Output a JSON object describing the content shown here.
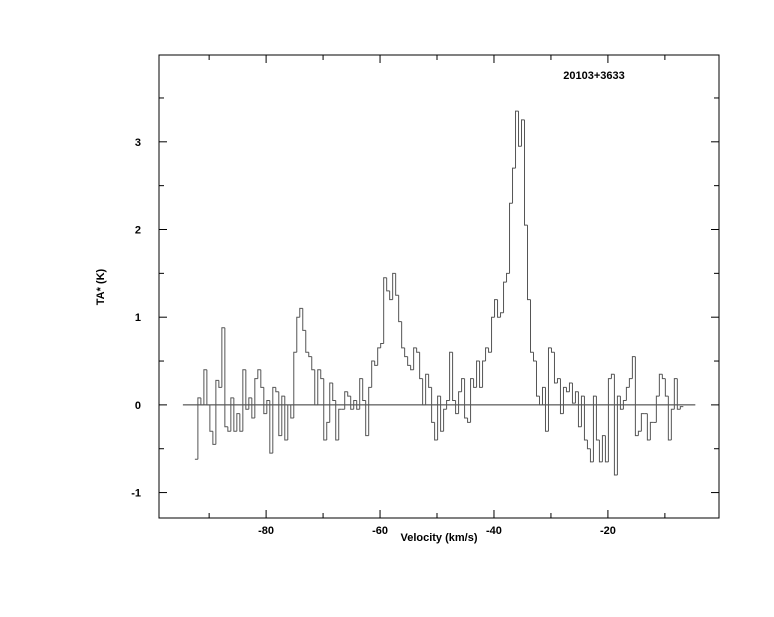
{
  "chart_data": {
    "type": "line",
    "style": "histogram-step",
    "title": "20103+3633",
    "xlabel": "Velocity (km/s)",
    "ylabel": "TA* (K)",
    "xlim": [
      -98.8,
      -0.5
    ],
    "ylim": [
      -1.29,
      3.99
    ],
    "xticks": [
      -80,
      -60,
      -40,
      -20
    ],
    "yticks": [
      -1,
      0,
      1,
      2,
      3
    ],
    "baseline": 0,
    "grid": false,
    "velocity_start": -92.5,
    "channel_width": 0.526,
    "values": [
      -0.62,
      0.08,
      0.0,
      0.4,
      0.0,
      -0.3,
      -0.45,
      0.28,
      0.2,
      0.88,
      -0.25,
      -0.3,
      0.08,
      -0.3,
      -0.1,
      -0.3,
      0.4,
      -0.05,
      0.08,
      -0.15,
      0.3,
      0.4,
      0.2,
      -0.1,
      0.05,
      -0.55,
      0.2,
      0.15,
      -0.35,
      0.1,
      -0.4,
      0.0,
      -0.15,
      0.6,
      1.0,
      1.1,
      0.85,
      0.6,
      0.55,
      0.4,
      0.0,
      0.4,
      0.3,
      -0.4,
      -0.2,
      0.25,
      0.05,
      -0.4,
      -0.05,
      -0.05,
      0.15,
      0.1,
      -0.05,
      0.05,
      -0.05,
      0.3,
      0.05,
      -0.35,
      0.2,
      0.5,
      0.45,
      0.65,
      0.7,
      1.45,
      1.3,
      1.2,
      1.5,
      1.25,
      0.95,
      0.65,
      0.55,
      0.45,
      0.4,
      0.65,
      0.6,
      0.3,
      0.0,
      0.35,
      0.2,
      -0.2,
      -0.4,
      0.1,
      -0.3,
      -0.05,
      0.05,
      0.6,
      0.05,
      -0.1,
      0.15,
      0.3,
      -0.15,
      -0.2,
      0.3,
      0.2,
      0.5,
      0.2,
      0.5,
      0.65,
      0.6,
      1.0,
      1.2,
      1.0,
      1.05,
      1.4,
      1.5,
      2.3,
      2.7,
      3.35,
      2.95,
      3.25,
      2.05,
      1.2,
      0.6,
      0.5,
      0.1,
      0.0,
      0.2,
      -0.3,
      0.65,
      0.6,
      0.25,
      0.3,
      -0.1,
      0.2,
      0.15,
      0.25,
      0.02,
      0.15,
      -0.25,
      0.1,
      -0.4,
      -0.5,
      -0.65,
      0.1,
      -0.4,
      -0.65,
      -0.35,
      -0.65,
      0.3,
      0.35,
      -0.8,
      0.1,
      -0.05,
      0.05,
      0.2,
      0.3,
      0.55,
      -0.35,
      -0.3,
      -0.1,
      -0.1,
      -0.4,
      -0.2,
      -0.2,
      0.1,
      0.35,
      0.3,
      0.1,
      -0.4,
      -0.05,
      0.3,
      -0.05,
      -0.02
    ],
    "colors": {
      "line": "#555555",
      "axes": "#000000"
    }
  }
}
